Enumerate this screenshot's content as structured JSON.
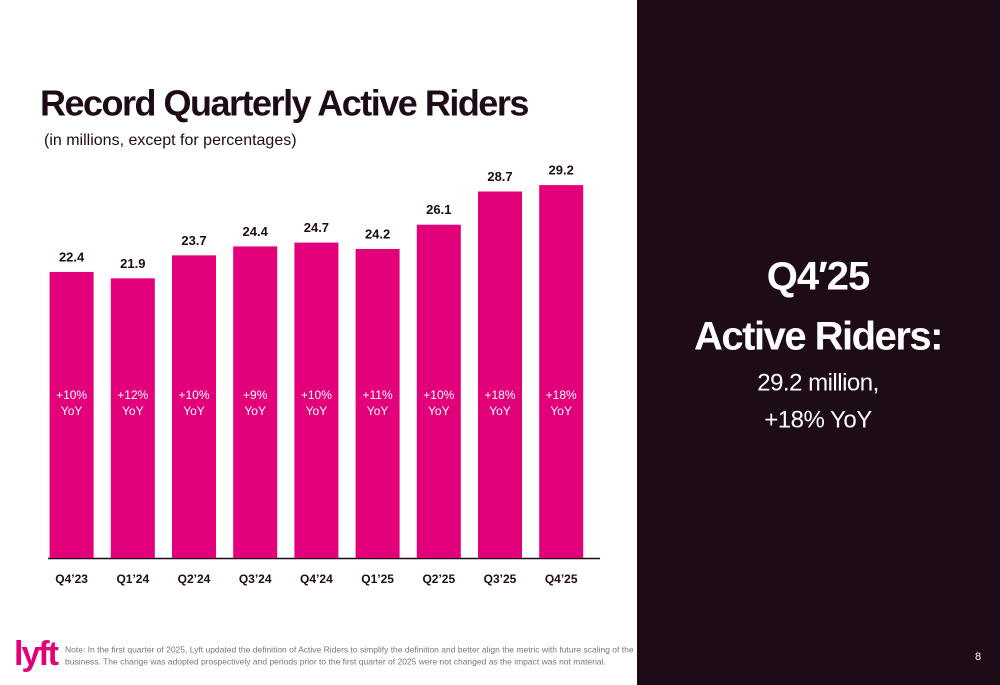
{
  "chart_data": {
    "type": "bar",
    "title": "Record Quarterly Active Riders",
    "subtitle": "(in millions, except for percentages)",
    "categories": [
      "Q4’23",
      "Q1’24",
      "Q2’24",
      "Q3’24",
      "Q4’24",
      "Q1’25",
      "Q2’25",
      "Q3’25",
      "Q4’25"
    ],
    "values": [
      22.4,
      21.9,
      23.7,
      24.4,
      24.7,
      24.2,
      26.1,
      28.7,
      29.2
    ],
    "annotations": [
      [
        "+10%",
        "YoY"
      ],
      [
        "+12%",
        "YoY"
      ],
      [
        "+10%",
        "YoY"
      ],
      [
        "+9%",
        "YoY"
      ],
      [
        "+10%",
        "YoY"
      ],
      [
        "+11%",
        "YoY"
      ],
      [
        "+10%",
        "YoY"
      ],
      [
        "+18%",
        "YoY"
      ],
      [
        "+18%",
        "YoY"
      ]
    ],
    "color": "#e3007b"
  },
  "panel": {
    "heading": [
      "Q4′25",
      "Active Riders:"
    ],
    "detail": [
      "29.2 million,",
      "+18% YoY"
    ]
  },
  "footer": {
    "logo": "lyft",
    "note": [
      "Note: In the first quarter of 2025, Lyft updated the definition of Active Riders to simplify the definition and better align the metric with future scaling of the",
      "business. The change was adopted prospectively and periods prior to the first quarter of 2025 were not changed as the impact was not material."
    ],
    "page": "8"
  }
}
